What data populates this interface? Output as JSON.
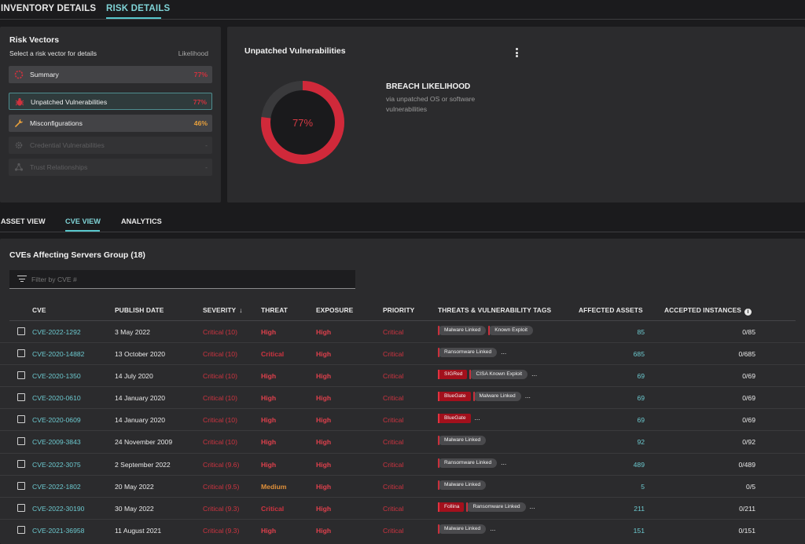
{
  "top_tabs": [
    "INVENTORY DETAILS",
    "RISK DETAILS"
  ],
  "colors": {
    "accent": "#58c7cc",
    "critical": "#cf3440",
    "high": "#e0404c",
    "medium": "#e0903a",
    "warning": "#e8a03c",
    "link": "#6cc9cf"
  },
  "risk_vectors": {
    "title": "Risk Vectors",
    "subtitle": "Select a risk vector for details",
    "likelihood_label": "Likelihood",
    "items": [
      {
        "label": "Summary",
        "value": "77%",
        "icon": "summary-ring-icon"
      },
      {
        "label": "Unpatched Vulnerabilities",
        "value": "77%",
        "icon": "bug-icon"
      },
      {
        "label": "Misconfigurations",
        "value": "46%",
        "icon": "wrench-icon"
      },
      {
        "label": "Credential Vulnerabilities",
        "value": "-",
        "icon": "gear-icon"
      },
      {
        "label": "Trust Relationships",
        "value": "-",
        "icon": "network-icon"
      }
    ]
  },
  "unpatched": {
    "title": "Unpatched Vulnerabilities",
    "donut_value": "77%",
    "donut_fraction": 0.77,
    "breach_title": "BREACH LIKELIHOOD",
    "breach_sub": "via unpatched OS or software vulnerabilities"
  },
  "view_tabs": [
    "ASSET VIEW",
    "CVE VIEW",
    "ANALYTICS"
  ],
  "cve_table": {
    "title": "CVEs Affecting Servers Group (18)",
    "filter_placeholder": "Filter by CVE #",
    "columns": [
      "CVE",
      "PUBLISH DATE",
      "SEVERITY",
      "THREAT",
      "EXPOSURE",
      "PRIORITY",
      "THREATS & VULNERABILITY TAGS",
      "AFFECTED ASSETS",
      "ACCEPTED INSTANCES"
    ],
    "rows": [
      {
        "cve": "CVE-2022-1292",
        "date": "3 May 2022",
        "severity": "Critical (10)",
        "threat": "High",
        "exposure": "High",
        "priority": "Critical",
        "tags": [
          {
            "t": "Malware Linked",
            "s": "grey"
          },
          {
            "t": "Known Exploit",
            "s": "grey"
          }
        ],
        "more": "",
        "affected": "85",
        "accepted": "0/85"
      },
      {
        "cve": "CVE-2020-14882",
        "date": "13 October 2020",
        "severity": "Critical (10)",
        "threat": "Critical",
        "exposure": "High",
        "priority": "Critical",
        "tags": [
          {
            "t": "Ransomware Linked",
            "s": "grey"
          }
        ],
        "more": "...",
        "affected": "685",
        "accepted": "0/685"
      },
      {
        "cve": "CVE-2020-1350",
        "date": "14 July 2020",
        "severity": "Critical (10)",
        "threat": "High",
        "exposure": "High",
        "priority": "Critical",
        "tags": [
          {
            "t": "SIGRed",
            "s": "red"
          },
          {
            "t": "CISA Known Exploit",
            "s": "grey"
          }
        ],
        "more": "...",
        "affected": "69",
        "accepted": "0/69"
      },
      {
        "cve": "CVE-2020-0610",
        "date": "14 January 2020",
        "severity": "Critical (10)",
        "threat": "High",
        "exposure": "High",
        "priority": "Critical",
        "tags": [
          {
            "t": "BlueGate",
            "s": "red"
          },
          {
            "t": "Malware Linked",
            "s": "grey"
          }
        ],
        "more": "...",
        "affected": "69",
        "accepted": "0/69"
      },
      {
        "cve": "CVE-2020-0609",
        "date": "14 January 2020",
        "severity": "Critical (10)",
        "threat": "High",
        "exposure": "High",
        "priority": "Critical",
        "tags": [
          {
            "t": "BlueGate",
            "s": "red"
          }
        ],
        "more": "...",
        "affected": "69",
        "accepted": "0/69"
      },
      {
        "cve": "CVE-2009-3843",
        "date": "24 November 2009",
        "severity": "Critical (10)",
        "threat": "High",
        "exposure": "High",
        "priority": "Critical",
        "tags": [
          {
            "t": "Malware Linked",
            "s": "grey"
          }
        ],
        "more": "",
        "affected": "92",
        "accepted": "0/92"
      },
      {
        "cve": "CVE-2022-3075",
        "date": "2 September 2022",
        "severity": "Critical (9.6)",
        "threat": "High",
        "exposure": "High",
        "priority": "Critical",
        "tags": [
          {
            "t": "Ransomware Linked",
            "s": "grey"
          }
        ],
        "more": "...",
        "affected": "489",
        "accepted": "0/489"
      },
      {
        "cve": "CVE-2022-1802",
        "date": "20 May 2022",
        "severity": "Critical (9.5)",
        "threat": "Medium",
        "exposure": "High",
        "priority": "Critical",
        "tags": [
          {
            "t": "Malware Linked",
            "s": "grey"
          }
        ],
        "more": "",
        "affected": "5",
        "accepted": "0/5"
      },
      {
        "cve": "CVE-2022-30190",
        "date": "30 May 2022",
        "severity": "Critical (9.3)",
        "threat": "Critical",
        "exposure": "High",
        "priority": "Critical",
        "tags": [
          {
            "t": "Follina",
            "s": "red"
          },
          {
            "t": "Ransomware Linked",
            "s": "grey"
          }
        ],
        "more": "...",
        "affected": "211",
        "accepted": "0/211"
      },
      {
        "cve": "CVE-2021-36958",
        "date": "11 August 2021",
        "severity": "Critical (9.3)",
        "threat": "High",
        "exposure": "High",
        "priority": "Critical",
        "tags": [
          {
            "t": "Malware Linked",
            "s": "grey"
          }
        ],
        "more": "...",
        "affected": "151",
        "accepted": "0/151"
      }
    ]
  }
}
